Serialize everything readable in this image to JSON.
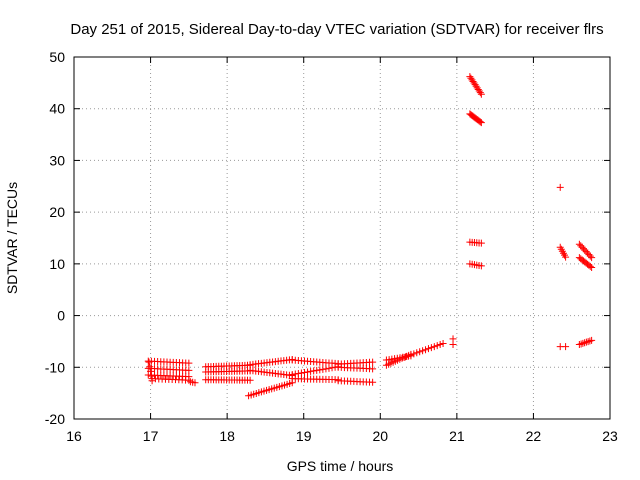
{
  "chart_data": {
    "type": "scatter",
    "title": "Day 251 of 2015, Sidereal Day-to-day VTEC variation (SDTVAR) for receiver flrs",
    "xlabel": "GPS time / hours",
    "ylabel": "SDTVAR / TECUs",
    "xlim": [
      16,
      23
    ],
    "ylim": [
      -20,
      50
    ],
    "xticks": [
      "16",
      "17",
      "18",
      "19",
      "20",
      "21",
      "22",
      "23"
    ],
    "yticks": [
      "-20",
      "-10",
      "0",
      "10",
      "20",
      "30",
      "40",
      "50"
    ],
    "grid": true,
    "marker": "plus",
    "color": "#ff0000",
    "segments": [
      {
        "x0": 16.97,
        "x1": 17.5,
        "y0": -8.8,
        "y1": -9.2,
        "n": 14
      },
      {
        "x0": 16.97,
        "x1": 17.5,
        "y0": -10.2,
        "y1": -10.6,
        "n": 14
      },
      {
        "x0": 16.97,
        "x1": 17.5,
        "y0": -11.5,
        "y1": -11.8,
        "n": 14
      },
      {
        "x0": 17.02,
        "x1": 17.5,
        "y0": -12.2,
        "y1": -12.5,
        "n": 12
      },
      {
        "x0": 16.98,
        "x1": 17.02,
        "y0": -9.0,
        "y1": -12.6,
        "n": 5
      },
      {
        "x0": 17.52,
        "x1": 17.58,
        "y0": -12.8,
        "y1": -13.0,
        "n": 3
      },
      {
        "x0": 17.72,
        "x1": 18.3,
        "y0": -9.9,
        "y1": -9.6,
        "n": 18
      },
      {
        "x0": 17.72,
        "x1": 18.3,
        "y0": -10.9,
        "y1": -10.7,
        "n": 18
      },
      {
        "x0": 17.72,
        "x1": 18.3,
        "y0": -12.4,
        "y1": -12.5,
        "n": 18
      },
      {
        "x0": 18.3,
        "x1": 18.85,
        "y0": -9.5,
        "y1": -8.5,
        "n": 16
      },
      {
        "x0": 18.3,
        "x1": 18.85,
        "y0": -10.6,
        "y1": -11.6,
        "n": 16
      },
      {
        "x0": 18.28,
        "x1": 18.85,
        "y0": -15.5,
        "y1": -13.0,
        "n": 18
      },
      {
        "x0": 18.85,
        "x1": 19.45,
        "y0": -8.6,
        "y1": -9.3,
        "n": 16
      },
      {
        "x0": 18.85,
        "x1": 19.45,
        "y0": -11.4,
        "y1": -9.9,
        "n": 16
      },
      {
        "x0": 18.85,
        "x1": 19.45,
        "y0": -12.2,
        "y1": -12.4,
        "n": 16
      },
      {
        "x0": 19.45,
        "x1": 19.9,
        "y0": -9.4,
        "y1": -9.0,
        "n": 12
      },
      {
        "x0": 19.45,
        "x1": 19.9,
        "y0": -10.0,
        "y1": -10.3,
        "n": 12
      },
      {
        "x0": 19.45,
        "x1": 19.9,
        "y0": -12.6,
        "y1": -12.9,
        "n": 12
      },
      {
        "x0": 20.08,
        "x1": 20.4,
        "y0": -9.6,
        "y1": -7.5,
        "n": 12
      },
      {
        "x0": 20.08,
        "x1": 20.4,
        "y0": -8.6,
        "y1": -7.8,
        "n": 10
      },
      {
        "x0": 20.4,
        "x1": 20.82,
        "y0": -7.6,
        "y1": -5.4,
        "n": 12
      },
      {
        "x0": 20.95,
        "x1": 20.95,
        "y0": -4.5,
        "y1": -5.6,
        "n": 2
      },
      {
        "x0": 21.17,
        "x1": 21.32,
        "y0": 46.2,
        "y1": 42.8,
        "n": 12
      },
      {
        "x0": 21.17,
        "x1": 21.32,
        "y0": 39.0,
        "y1": 37.3,
        "n": 12
      },
      {
        "x0": 21.17,
        "x1": 21.32,
        "y0": 14.2,
        "y1": 14.0,
        "n": 6
      },
      {
        "x0": 21.17,
        "x1": 21.32,
        "y0": 10.0,
        "y1": 9.6,
        "n": 6
      },
      {
        "x0": 22.35,
        "x1": 22.35,
        "y0": 24.8,
        "y1": 24.8,
        "n": 1
      },
      {
        "x0": 22.35,
        "x1": 22.42,
        "y0": 13.2,
        "y1": 11.3,
        "n": 6
      },
      {
        "x0": 22.35,
        "x1": 22.42,
        "y0": -6.0,
        "y1": -6.0,
        "n": 2
      },
      {
        "x0": 22.6,
        "x1": 22.76,
        "y0": 13.8,
        "y1": 11.2,
        "n": 10
      },
      {
        "x0": 22.6,
        "x1": 22.76,
        "y0": 11.2,
        "y1": 9.3,
        "n": 10
      },
      {
        "x0": 22.6,
        "x1": 22.76,
        "y0": -5.6,
        "y1": -4.8,
        "n": 8
      }
    ]
  }
}
